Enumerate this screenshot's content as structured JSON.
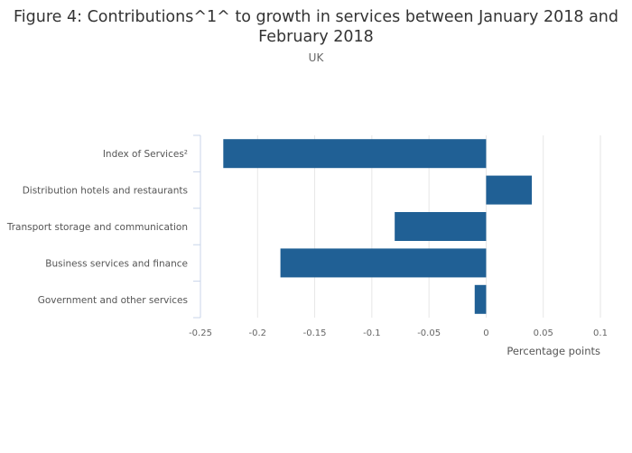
{
  "chart_data": {
    "type": "bar",
    "orientation": "horizontal",
    "title": "Figure 4: Contributions^1^ to growth in services between January 2018 and February 2018",
    "subtitle": "UK",
    "xlabel": "Percentage points",
    "ylabel": "",
    "categories": [
      "Index of Services²",
      "Distribution hotels and restaurants",
      "Transport storage and communication",
      "Business services and finance",
      "Government and other services"
    ],
    "values": [
      -0.23,
      0.04,
      -0.08,
      -0.18,
      -0.01
    ],
    "xlim": [
      -0.25,
      0.1
    ],
    "xticks": [
      "-0.25",
      "-0.2",
      "-0.15",
      "-0.1",
      "-0.05",
      "0",
      "0.05",
      "0.1"
    ],
    "grid": true,
    "bar_color": "#206095"
  }
}
